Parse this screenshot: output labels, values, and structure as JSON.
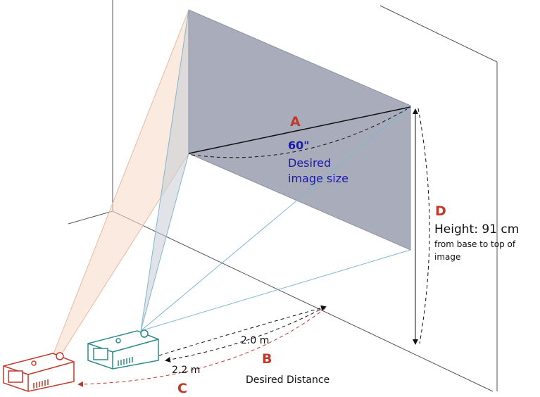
{
  "labels": {
    "a": "A",
    "size": "60\"",
    "size_caption": [
      "Desired",
      "image size"
    ],
    "b": "B",
    "distance_caption": "Desired Distance",
    "c": "C",
    "d": "D",
    "height": "Height: 91 cm",
    "height_caption": [
      "from base to top of",
      "image"
    ],
    "near_distance": "2.0 m",
    "far_distance": "2.2 m"
  }
}
